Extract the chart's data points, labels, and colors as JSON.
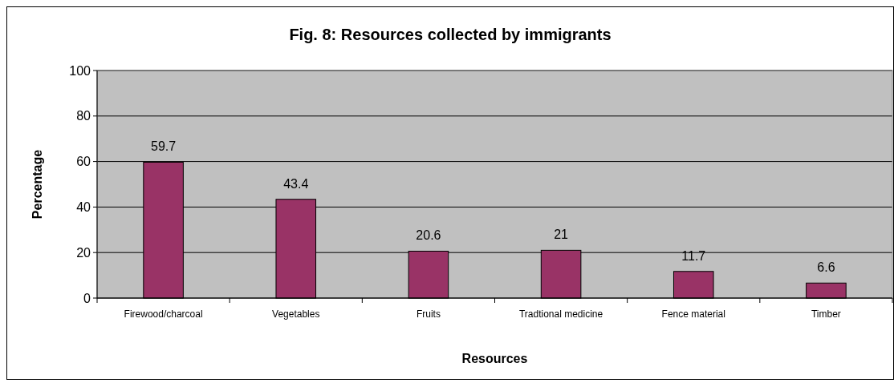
{
  "chart_data": {
    "type": "bar",
    "title": "Fig. 8: Resources collected by immigrants",
    "xlabel": "Resources",
    "ylabel": "Percentage",
    "categories": [
      "Firewood/charcoal",
      "Vegetables",
      "Fruits",
      "Tradtional medicine",
      "Fence material",
      "Timber"
    ],
    "values": [
      59.7,
      43.4,
      20.6,
      21,
      11.7,
      6.6
    ],
    "color": "#993366",
    "ylim": [
      0,
      100
    ],
    "yticks": [
      0,
      20,
      40,
      60,
      80,
      100
    ],
    "grid": "y",
    "data_labels": true
  }
}
